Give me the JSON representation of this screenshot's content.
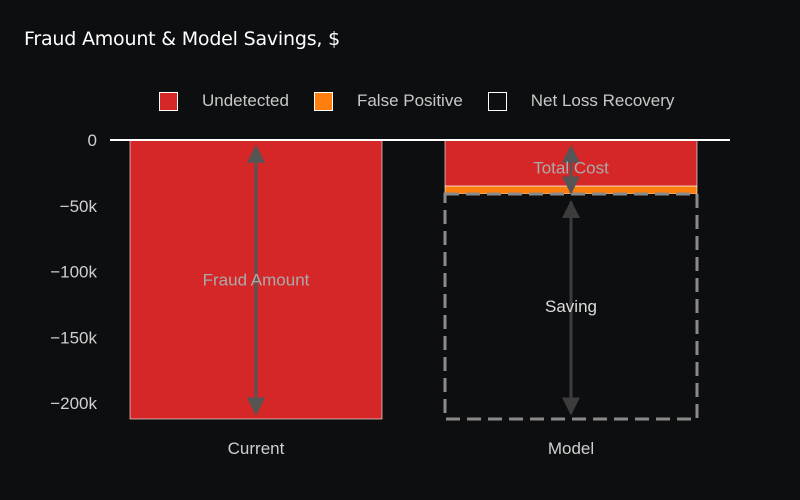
{
  "chart_data": {
    "type": "bar",
    "title": "Fraud Amount & Model Savings, $",
    "xlabel": "",
    "ylabel": "",
    "categories": [
      "Current",
      "Model"
    ],
    "ylim": [
      -212000,
      0
    ],
    "yticks": [
      0,
      -50000,
      -100000,
      -150000,
      -200000
    ],
    "ytick_labels": [
      "0",
      "−50k",
      "−100k",
      "−150k",
      "−200k"
    ],
    "stacked": true,
    "series": [
      {
        "name": "Undetected",
        "color": "#d62728",
        "values": [
          -212000,
          -35000
        ]
      },
      {
        "name": "False Positive",
        "color": "#ff7f0e",
        "values": [
          0,
          -6000
        ]
      },
      {
        "name": "Net Loss Recovery",
        "color": "#0d0e10",
        "outline": "dashed",
        "values": [
          0,
          -171000
        ]
      }
    ],
    "legend_position": "top",
    "annotations": [
      {
        "label": "Fraud Amount",
        "category": "Current",
        "from": -5000,
        "to": -208000,
        "label_at": -106000,
        "color": "#aaaaaa"
      },
      {
        "label": "Total Cost",
        "category": "Model",
        "from": -5000,
        "to": -40000,
        "label_at": -21000,
        "color": "#aaaaaa"
      },
      {
        "label": "Saving",
        "category": "Model",
        "from": -47000,
        "to": -208000,
        "label_at": -126000,
        "color": "#dddddd"
      }
    ]
  }
}
